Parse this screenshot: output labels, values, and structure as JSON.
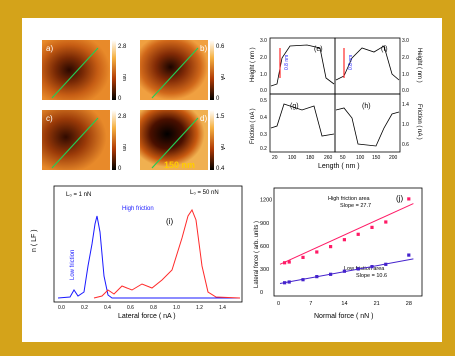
{
  "colors": {
    "frame": "#d4a31a",
    "red": "#ff2a2a",
    "blue": "#1a1aff",
    "green": "#22cc55",
    "magenta": "#ff1aa0",
    "purple": "#5544dd"
  },
  "afm_panels": [
    {
      "label": "a)",
      "scale_max": "2.8",
      "scale_min": "0",
      "unit": "nm"
    },
    {
      "label": "b)",
      "scale_max": "0.6",
      "scale_min": "0",
      "unit": "nA"
    },
    {
      "label": "c)",
      "scale_max": "2.8",
      "scale_min": "0",
      "unit": "nm"
    },
    {
      "label": "d)",
      "scale_max": "1.5",
      "scale_min": "0.4",
      "unit": "nA"
    }
  ],
  "scale_bar": "150 nm",
  "profiles": {
    "panel_labels": [
      "(e)",
      "(f)",
      "(g)",
      "(h)"
    ],
    "height_ylabel": "Height ( nm )",
    "friction_ylabel": "Friction ( nA )",
    "xlabel": "Length ( nm )",
    "x_ticks": [
      "20",
      "100",
      "180",
      "260",
      "50",
      "100",
      "150",
      "200"
    ],
    "height_ticks_left": [
      "3.0",
      "2.0",
      "1.0",
      "0.0"
    ],
    "height_ticks_right": [
      "3.0",
      "2.0",
      "1.0",
      "0.0"
    ],
    "friction_ticks_left": [
      "0.5",
      "0.4",
      "0.3",
      "0.2"
    ],
    "friction_ticks_right": [
      "1.4",
      "1.0",
      "0.6"
    ],
    "marker_label": "0.8 nm"
  },
  "histogram": {
    "panel_label": "(i)",
    "ylabel": "n ( LF )",
    "xlabel": "Lateral force ( nA )",
    "x_ticks": [
      "0.0",
      "0.2",
      "0.4",
      "0.6",
      "0.8",
      "1.0",
      "1.2",
      "1.4"
    ],
    "load_low": "L₀ = 1 nN",
    "load_high": "L₀ = 50 nN",
    "low_friction": "Low friction",
    "high_friction": "High friction"
  },
  "chart_data": {
    "type": "scatter",
    "panel_label": "(j)",
    "xlabel": "Normal force ( nN )",
    "ylabel": "Lateral force ( arb. units )",
    "xlim": [
      0,
      30
    ],
    "ylim": [
      0,
      1300
    ],
    "x_ticks": [
      "0",
      "7",
      "14",
      "21",
      "28"
    ],
    "y_ticks": [
      "0",
      "300",
      "600",
      "900",
      "1200"
    ],
    "annotation_high": "High friction area\nSlope = 27.7",
    "annotation_low": "Low friction area\nSlope = 10.6",
    "series": [
      {
        "color": "#ff1a66",
        "points": [
          [
            1,
            380
          ],
          [
            2,
            390
          ],
          [
            5,
            450
          ],
          [
            8,
            520
          ],
          [
            11,
            590
          ],
          [
            14,
            680
          ],
          [
            17,
            750
          ],
          [
            20,
            840
          ],
          [
            23,
            910
          ],
          [
            28,
            1210
          ]
        ]
      },
      {
        "color": "#4422cc",
        "points": [
          [
            1,
            120
          ],
          [
            2,
            130
          ],
          [
            5,
            160
          ],
          [
            8,
            200
          ],
          [
            11,
            230
          ],
          [
            14,
            270
          ],
          [
            17,
            300
          ],
          [
            20,
            330
          ],
          [
            23,
            360
          ],
          [
            28,
            480
          ]
        ]
      }
    ],
    "fit_lines": [
      {
        "color": "#ff1a66",
        "from": [
          0,
          360
        ],
        "to": [
          29,
          1150
        ]
      },
      {
        "color": "#4422cc",
        "from": [
          0,
          110
        ],
        "to": [
          29,
          430
        ]
      }
    ]
  }
}
